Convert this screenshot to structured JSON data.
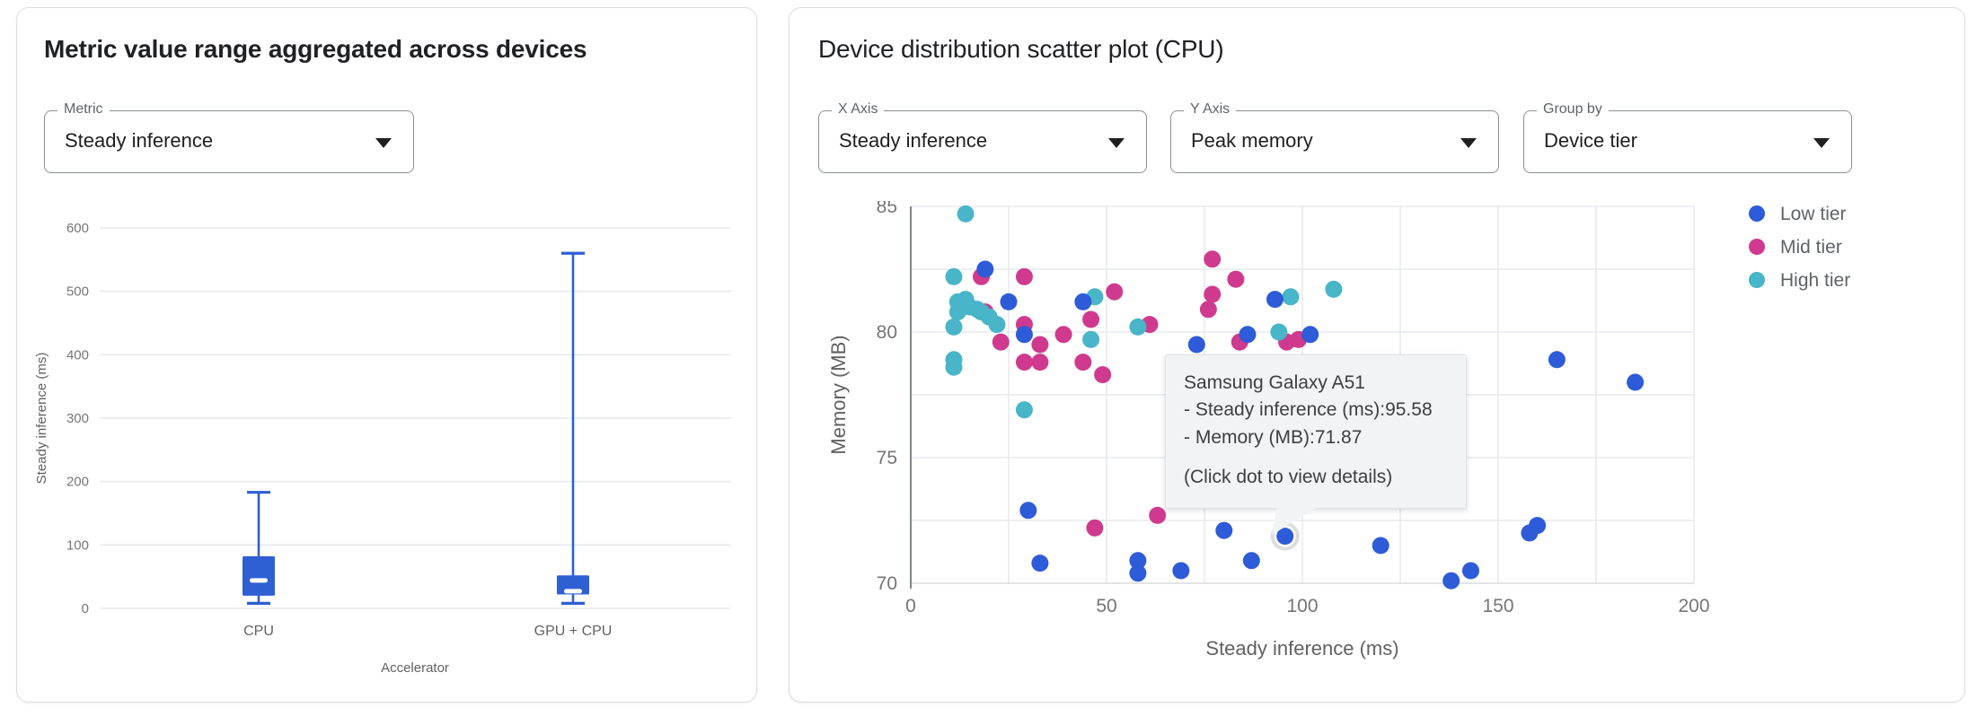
{
  "left_panel": {
    "title": "Metric value range aggregated across devices",
    "metric_select": {
      "label": "Metric",
      "value": "Steady inference"
    }
  },
  "right_panel": {
    "title": "Device distribution scatter plot (CPU)",
    "x_axis_select": {
      "label": "X Axis",
      "value": "Steady inference"
    },
    "y_axis_select": {
      "label": "Y Axis",
      "value": "Peak memory"
    },
    "group_by_select": {
      "label": "Group by",
      "value": "Device tier"
    }
  },
  "tooltip": {
    "device_name": "Samsung Galaxy A51",
    "x_line": "- Steady inference (ms):95.58",
    "y_line": "- Memory (MB):71.87",
    "hint": "(Click dot to view details)"
  },
  "colors": {
    "low_tier": "#2e5bd7",
    "mid_tier": "#cf3a8e",
    "high_tier": "#48b5c8",
    "box_blue": "#2e5fd3",
    "grid": "#e8eaed",
    "axis_line": "#80868b",
    "tick_text": "#757575",
    "axis_title_text": "#616161",
    "legend_text": "#5f6368"
  },
  "chart_data": [
    {
      "type": "boxplot",
      "title": "",
      "xlabel": "Accelerator",
      "ylabel": "Steady inference (ms)",
      "ylim": [
        0,
        600
      ],
      "yticks": [
        0,
        100,
        200,
        300,
        400,
        500,
        600
      ],
      "categories": [
        "CPU",
        "GPU + CPU"
      ],
      "boxes": [
        {
          "category": "CPU",
          "min": 8,
          "q1": 20,
          "median": 44,
          "q3": 82,
          "max": 183
        },
        {
          "category": "GPU + CPU",
          "min": 8,
          "q1": 22,
          "median": 27,
          "q3": 52,
          "max": 560
        }
      ]
    },
    {
      "type": "scatter",
      "xlabel": "Steady inference (ms)",
      "ylabel": "Memory (MB)",
      "xlim": [
        0,
        200
      ],
      "ylim": [
        70,
        85
      ],
      "xticks": [
        0,
        50,
        100,
        150,
        200
      ],
      "yticks": [
        70,
        75,
        80,
        85
      ],
      "minor_x_step": 25,
      "minor_y_step": 2.5,
      "grid": true,
      "legend_position": "right",
      "series": [
        {
          "name": "Low tier",
          "color_key": "low_tier",
          "points": [
            [
              19,
              82.5
            ],
            [
              25,
              81.2
            ],
            [
              29,
              79.9
            ],
            [
              44,
              81.2
            ],
            [
              73,
              79.5
            ],
            [
              86,
              79.9
            ],
            [
              93,
              81.3
            ],
            [
              102,
              79.9
            ],
            [
              165,
              78.9
            ],
            [
              185,
              78.0
            ],
            [
              30,
              72.9
            ],
            [
              33,
              70.8
            ],
            [
              58,
              70.9
            ],
            [
              58,
              70.4
            ],
            [
              69,
              70.5
            ],
            [
              80,
              72.1
            ],
            [
              87,
              70.9
            ],
            [
              95.58,
              71.87
            ],
            [
              120,
              71.5
            ],
            [
              138,
              70.1
            ],
            [
              143,
              70.5
            ],
            [
              158,
              72.0
            ],
            [
              160,
              72.3
            ]
          ]
        },
        {
          "name": "Mid tier",
          "color_key": "mid_tier",
          "points": [
            [
              18,
              82.2
            ],
            [
              29,
              82.2
            ],
            [
              19,
              80.8
            ],
            [
              23,
              79.6
            ],
            [
              29,
              80.3
            ],
            [
              29,
              78.8
            ],
            [
              33,
              79.5
            ],
            [
              33,
              78.8
            ],
            [
              39,
              79.9
            ],
            [
              44,
              78.8
            ],
            [
              46,
              80.5
            ],
            [
              49,
              78.3
            ],
            [
              52,
              81.6
            ],
            [
              61,
              80.3
            ],
            [
              47,
              72.2
            ],
            [
              63,
              72.7
            ],
            [
              76,
              80.9
            ],
            [
              77,
              82.9
            ],
            [
              77,
              81.5
            ],
            [
              83,
              82.1
            ],
            [
              84,
              79.6
            ],
            [
              96,
              79.6
            ],
            [
              99,
              79.7
            ]
          ]
        },
        {
          "name": "High tier",
          "color_key": "high_tier",
          "points": [
            [
              14,
              84.7
            ],
            [
              11,
              82.2
            ],
            [
              11,
              80.2
            ],
            [
              11,
              78.9
            ],
            [
              11,
              78.6
            ],
            [
              12,
              80.8
            ],
            [
              12,
              81.2
            ],
            [
              14,
              81.3
            ],
            [
              15,
              81.0
            ],
            [
              17,
              80.9
            ],
            [
              18,
              80.8
            ],
            [
              20,
              80.6
            ],
            [
              22,
              80.3
            ],
            [
              29,
              76.9
            ],
            [
              46,
              79.7
            ],
            [
              47,
              81.4
            ],
            [
              58,
              80.2
            ],
            [
              94,
              80.0
            ],
            [
              97,
              81.4
            ],
            [
              108,
              81.7
            ]
          ]
        }
      ],
      "highlighted_point": {
        "series": "Low tier",
        "x": 95.58,
        "y": 71.87
      }
    }
  ]
}
